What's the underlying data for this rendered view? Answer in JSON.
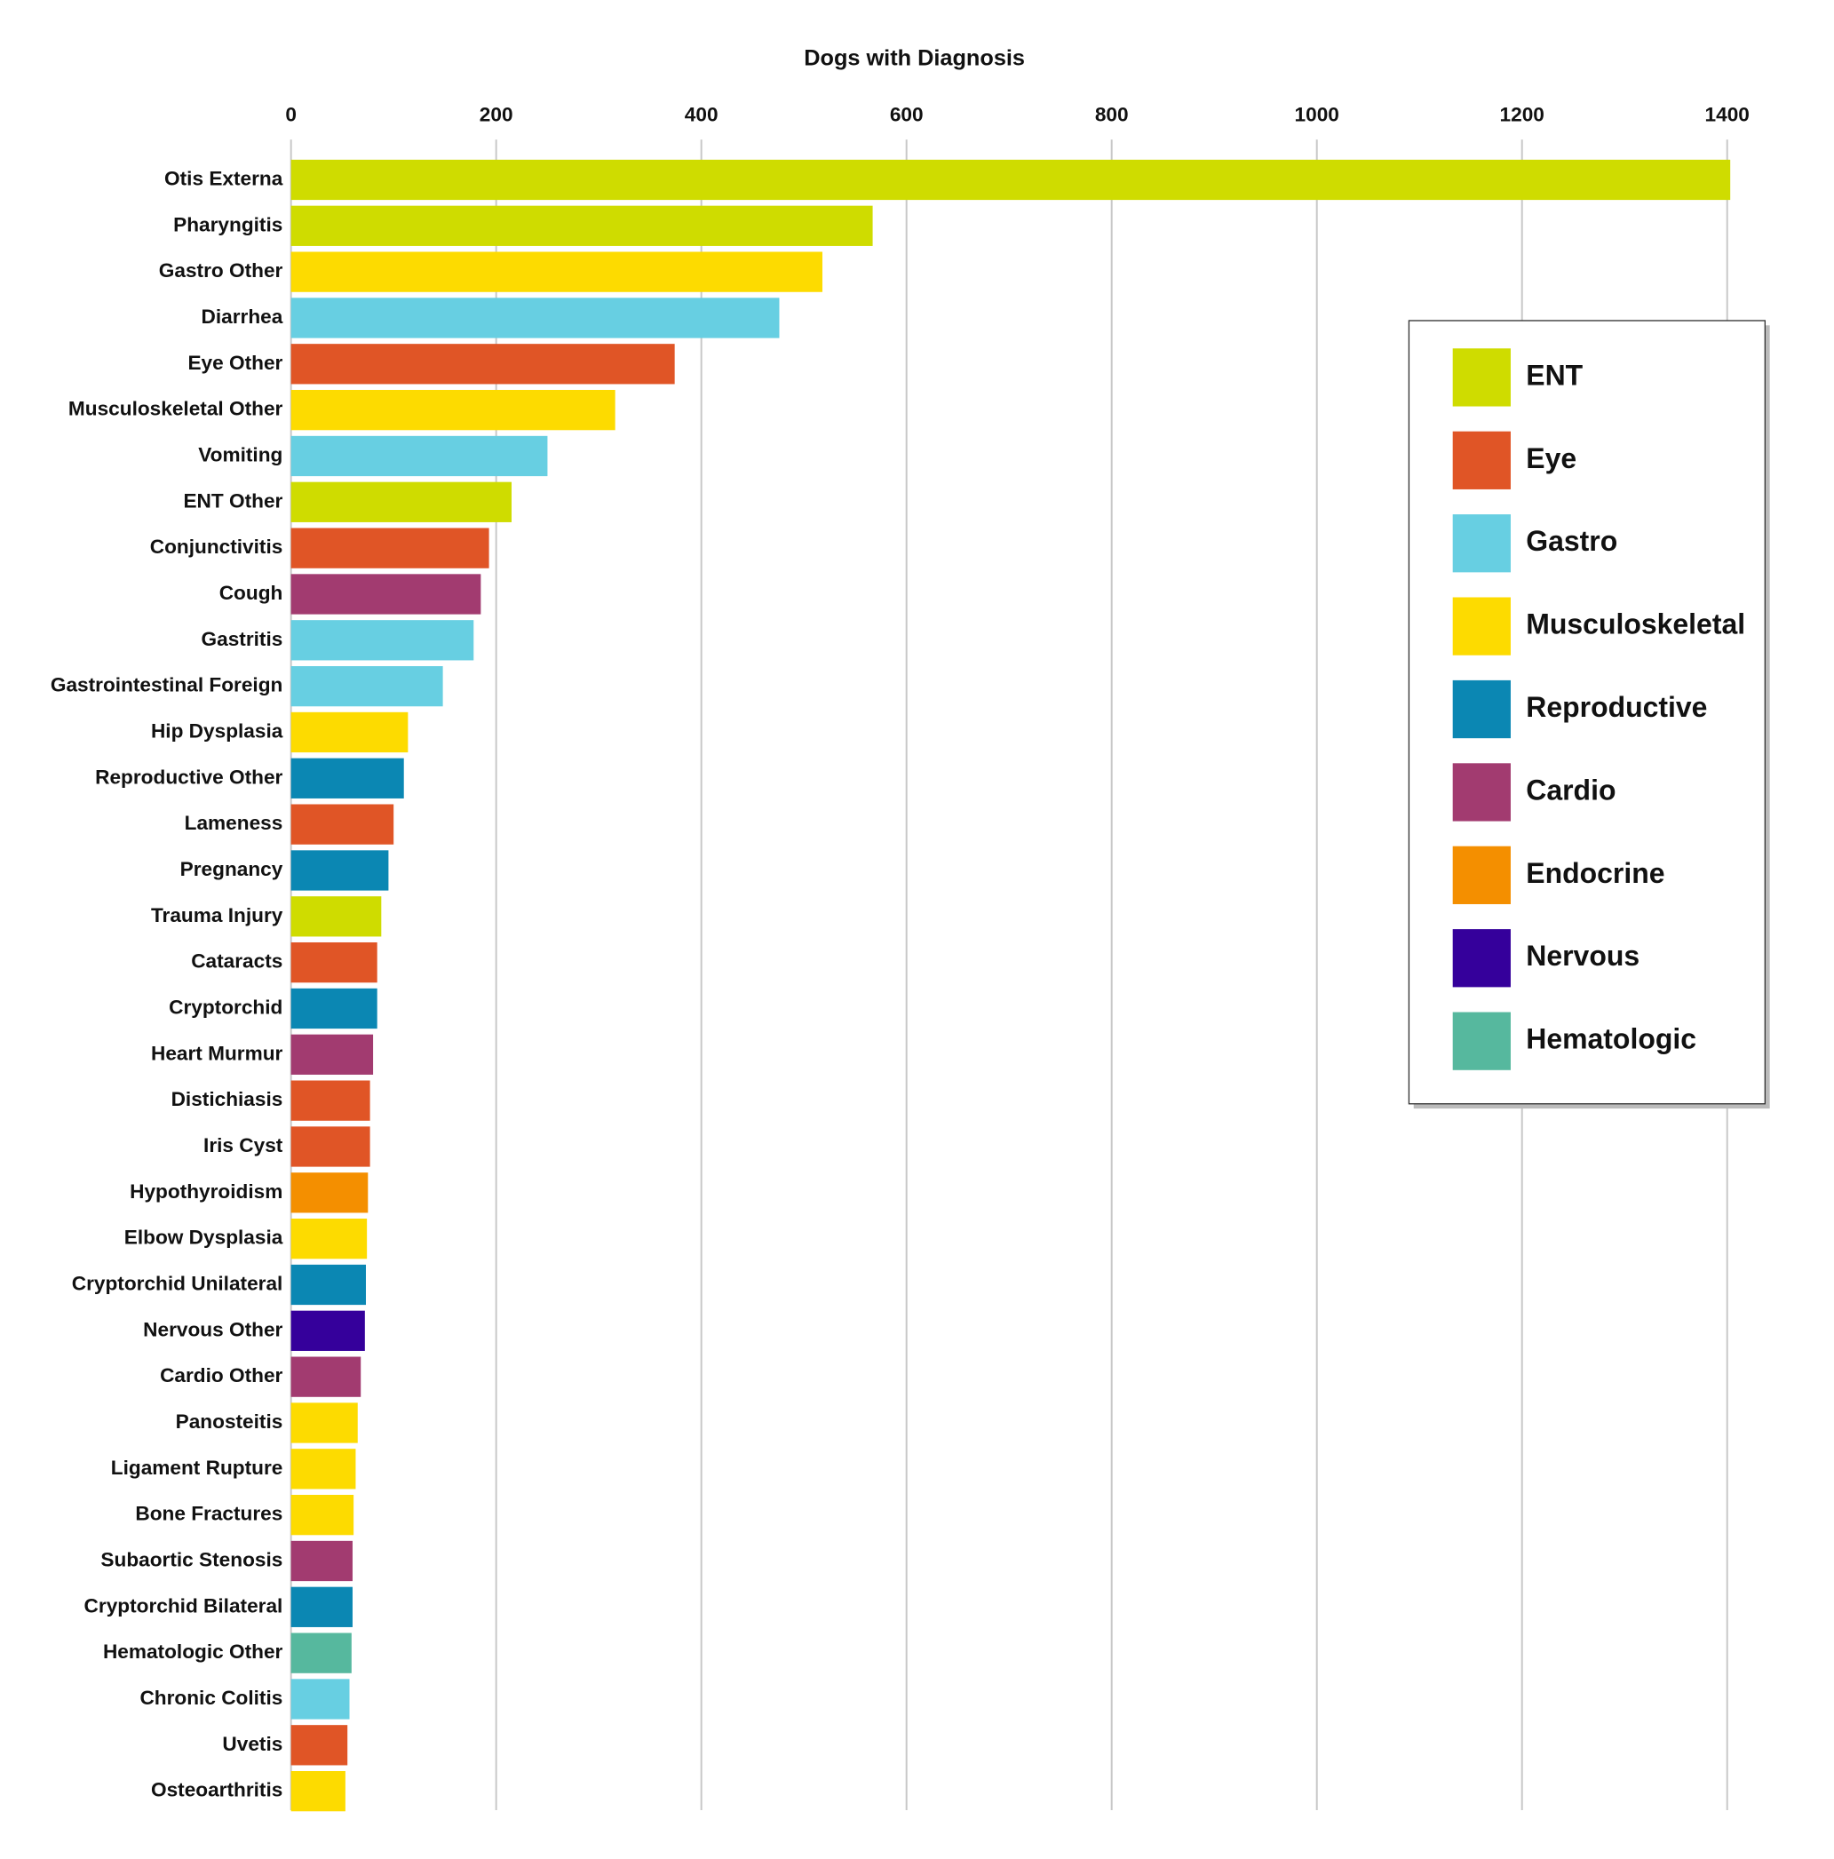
{
  "chart_data": {
    "type": "barh",
    "title": "Dogs with Diagnosis",
    "categories": [
      "Otis Externa",
      "Pharyngitis",
      "Gastro Other",
      "Diarrhea",
      "Eye Other",
      "Musculoskeletal Other",
      "Vomiting",
      "ENT Other",
      "Conjunctivitis",
      "Cough",
      "Gastritis",
      "Gastrointestinal Foreign",
      "Hip Dysplasia",
      "Reproductive Other",
      "Lameness",
      "Pregnancy",
      "Trauma Injury",
      "Cataracts",
      "Cryptorchid",
      "Heart Murmur",
      "Distichiasis",
      "Iris Cyst",
      "Hypothyroidism",
      "Elbow Dysplasia",
      "Cryptorchid Unilateral",
      "Nervous Other",
      "Cardio Other",
      "Panosteitis",
      "Ligament Rupture",
      "Bone Fractures",
      "Subaortic Stenosis",
      "Cryptorchid Bilateral",
      "Hematologic Other",
      "Chronic Colitis",
      "Uvetis",
      "Osteoarthritis"
    ],
    "values": [
      1403,
      567,
      518,
      476,
      374,
      316,
      250,
      215,
      193,
      185,
      178,
      148,
      114,
      110,
      100,
      95,
      88,
      84,
      84,
      80,
      77,
      77,
      75,
      74,
      73,
      72,
      68,
      65,
      63,
      61,
      60,
      60,
      59,
      57,
      55,
      53
    ],
    "colors": [
      "#cfdc00",
      "#cfdc00",
      "#fddb00",
      "#67cfe2",
      "#e05526",
      "#fddb00",
      "#67cfe2",
      "#cfdc00",
      "#e05526",
      "#a23b70",
      "#67cfe2",
      "#67cfe2",
      "#fddb00",
      "#0b87b3",
      "#e05526",
      "#0b87b3",
      "#cfdc00",
      "#e05526",
      "#0b87b3",
      "#a23b70",
      "#e05526",
      "#e05526",
      "#f48f00",
      "#fddb00",
      "#0b87b3",
      "#35009b",
      "#a23b70",
      "#fddb00",
      "#fddb00",
      "#fddb00",
      "#a23b70",
      "#0b87b3",
      "#56b89e",
      "#67cfe2",
      "#e05526",
      "#fddb00"
    ],
    "xlim": [
      0,
      1400
    ],
    "xticks": [
      0,
      200,
      400,
      600,
      800,
      1000,
      1200,
      1400
    ],
    "grid": true,
    "legend_position": "right",
    "legend": [
      {
        "name": "ENT",
        "color": "#cfdc00"
      },
      {
        "name": "Eye",
        "color": "#e05526"
      },
      {
        "name": "Gastro",
        "color": "#67cfe2"
      },
      {
        "name": "Musculoskeletal",
        "color": "#fddb00"
      },
      {
        "name": "Reproductive",
        "color": "#0b87b3"
      },
      {
        "name": "Cardio",
        "color": "#a23b70"
      },
      {
        "name": "Endocrine",
        "color": "#f48f00"
      },
      {
        "name": "Nervous",
        "color": "#35009b"
      },
      {
        "name": "Hematologic",
        "color": "#56b89e"
      }
    ]
  }
}
